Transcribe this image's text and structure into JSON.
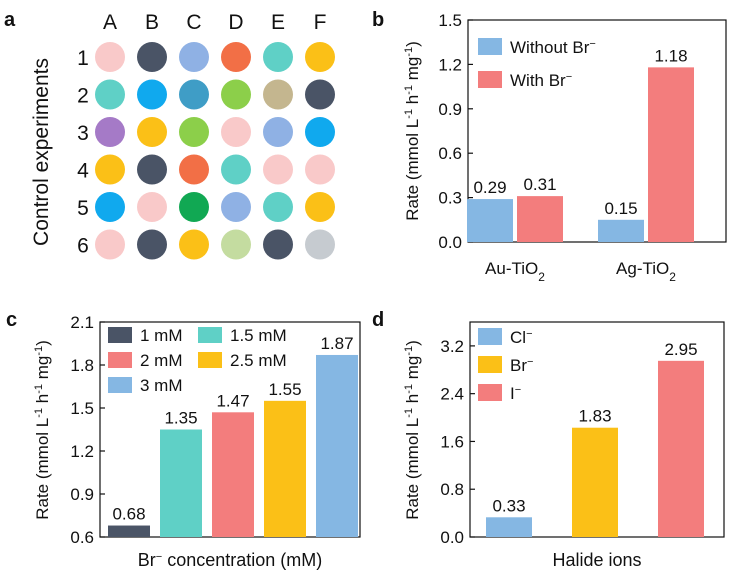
{
  "panel_a": {
    "label": "a",
    "ylabel": "Control experiments",
    "columns": [
      "A",
      "B",
      "C",
      "D",
      "E",
      "F"
    ],
    "rows": [
      "1",
      "2",
      "3",
      "4",
      "5",
      "6"
    ],
    "colors": [
      [
        "#f9c9c9",
        "#4a5466",
        "#8fb1e4",
        "#f26f46",
        "#5fd0c6",
        "#fbc017"
      ],
      [
        "#5fd0c6",
        "#10a9ee",
        "#3f9dc6",
        "#8ccf4a",
        "#c4b68f",
        "#4a5466"
      ],
      [
        "#a57ac7",
        "#fbc017",
        "#8ccf4a",
        "#f9c9c9",
        "#8fb1e4",
        "#10a9ee"
      ],
      [
        "#fbc017",
        "#4a5466",
        "#f26f46",
        "#5fd0c6",
        "#f9c9c9",
        "#f9c9c9"
      ],
      [
        "#10a9ee",
        "#f9c9c9",
        "#11a853",
        "#8fb1e4",
        "#5fd0c6",
        "#fbc017"
      ],
      [
        "#f9c9c9",
        "#4a5466",
        "#fbc017",
        "#c4dca0",
        "#4a5466",
        "#c6cbd0"
      ]
    ]
  },
  "panel_b": {
    "label": "b",
    "chart_data": {
      "type": "bar",
      "categories": [
        "Au-TiO",
        "Ag-TiO"
      ],
      "category_subscript": "2",
      "series": [
        {
          "name": "Without Br",
          "sup": "−",
          "color": "#85b7e3",
          "values": [
            0.29,
            0.15
          ]
        },
        {
          "name": "With Br",
          "sup": "−",
          "color": "#f37d7d",
          "values": [
            0.31,
            1.18
          ]
        }
      ],
      "data_labels": [
        [
          "0.29",
          "0.15"
        ],
        [
          "0.31",
          "1.18"
        ]
      ],
      "ylim": [
        0,
        1.5
      ],
      "yticks": [
        "0.0",
        "0.3",
        "0.6",
        "0.9",
        "1.2",
        "1.5"
      ],
      "ylabel": "Rate (mmol L h mg )",
      "xlabel": "",
      "legend_position": "top-left"
    }
  },
  "panel_c": {
    "label": "c",
    "chart_data": {
      "type": "bar",
      "categories": [
        "1 mM",
        "1.5 mM",
        "2 mM",
        "2.5 mM",
        "3 mM"
      ],
      "values": [
        0.68,
        1.35,
        1.47,
        1.55,
        1.87
      ],
      "data_labels": [
        "0.68",
        "1.35",
        "1.47",
        "1.55",
        "1.87"
      ],
      "colors": [
        "#4a5466",
        "#5fd0c6",
        "#f37d7d",
        "#fbc017",
        "#85b7e3"
      ],
      "ylim": [
        0.6,
        2.1
      ],
      "yticks": [
        "0.6",
        "0.9",
        "1.2",
        "1.5",
        "1.8",
        "2.1"
      ],
      "ylabel": "Rate (mmol L h mg )",
      "xlabel_prefix": "Br",
      "xlabel_sup": "−",
      "xlabel": " concentration (mM)",
      "legend_position": "top-left"
    }
  },
  "panel_d": {
    "label": "d",
    "chart_data": {
      "type": "bar",
      "categories": [
        "Cl",
        "Br",
        "I"
      ],
      "category_sup": "−",
      "values": [
        0.33,
        1.83,
        2.95
      ],
      "data_labels": [
        "0.33",
        "1.83",
        "2.95"
      ],
      "colors": [
        "#85b7e3",
        "#fbc017",
        "#f37d7d"
      ],
      "ylim": [
        0,
        3.6
      ],
      "yticks": [
        "0.0",
        "0.8",
        "1.6",
        "2.4",
        "3.2"
      ],
      "ylabel": "Rate (mmol L h mg )",
      "xlabel": "Halide ions",
      "legend_position": "top-left"
    }
  }
}
